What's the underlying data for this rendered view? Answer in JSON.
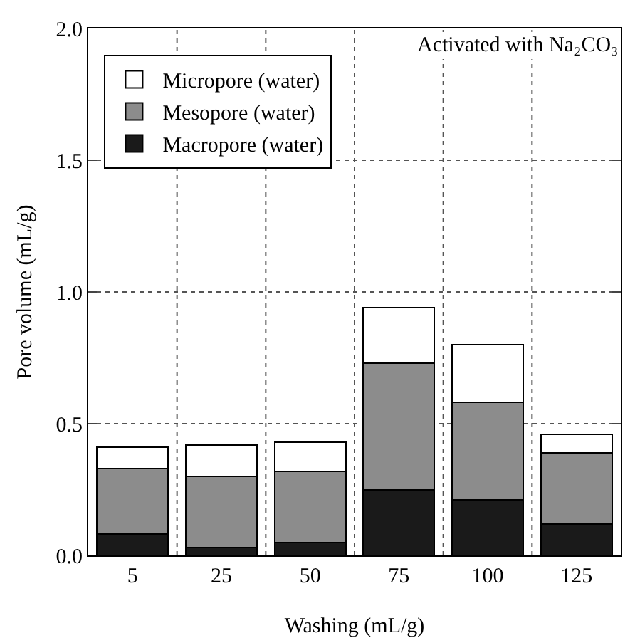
{
  "chart_data": {
    "type": "bar",
    "stacked": true,
    "xlabel": "Washing (mL/g)",
    "ylabel": "Pore volume (mL/g)",
    "annotations": [
      "Activated with Na₂CO₃"
    ],
    "categories": [
      "5",
      "25",
      "50",
      "75",
      "100",
      "125"
    ],
    "series": [
      {
        "name": "Macropore (water)",
        "color": "#1a1a1a",
        "values": [
          0.08,
          0.03,
          0.05,
          0.25,
          0.21,
          0.12
        ]
      },
      {
        "name": "Mesopore (water)",
        "color": "#8c8c8c",
        "values": [
          0.25,
          0.27,
          0.27,
          0.48,
          0.37,
          0.27
        ]
      },
      {
        "name": "Micropore (water)",
        "color": "#ffffff",
        "values": [
          0.08,
          0.12,
          0.11,
          0.21,
          0.22,
          0.07
        ]
      }
    ],
    "ylim": [
      0,
      2
    ],
    "yticks": [
      {
        "value": 0,
        "label": "0.0"
      },
      {
        "value": 0.5,
        "label": "0.5"
      },
      {
        "value": 1,
        "label": "1.0"
      },
      {
        "value": 1.5,
        "label": "1.5"
      },
      {
        "value": 2,
        "label": "2.0"
      }
    ],
    "grid": true,
    "legend": "top left"
  }
}
